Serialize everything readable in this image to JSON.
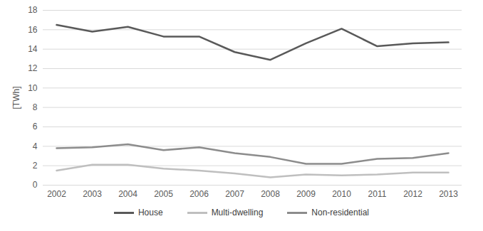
{
  "chart_data": {
    "type": "line",
    "categories": [
      "2002",
      "2003",
      "2004",
      "2005",
      "2006",
      "2007",
      "2008",
      "2009",
      "2010",
      "2011",
      "2012",
      "2013"
    ],
    "series": [
      {
        "name": "House",
        "color": "#595959",
        "values": [
          16.5,
          15.8,
          16.3,
          15.3,
          15.3,
          13.7,
          12.9,
          14.6,
          16.1,
          14.3,
          14.6,
          14.7
        ]
      },
      {
        "name": "Multi-dwelling",
        "color": "#bfbfbf",
        "values": [
          1.5,
          2.1,
          2.1,
          1.7,
          1.5,
          1.2,
          0.8,
          1.1,
          1.0,
          1.1,
          1.3,
          1.3
        ]
      },
      {
        "name": "Non-residential",
        "color": "#8c8c8c",
        "values": [
          3.8,
          3.9,
          4.2,
          3.6,
          3.9,
          3.3,
          2.9,
          2.2,
          2.2,
          2.7,
          2.8,
          3.3
        ]
      }
    ],
    "y_label": "[TWh]",
    "ylim": [
      0,
      18
    ],
    "yticks": [
      0,
      2,
      4,
      6,
      8,
      10,
      12,
      14,
      16,
      18
    ],
    "grid": true,
    "legend": "bottom"
  }
}
